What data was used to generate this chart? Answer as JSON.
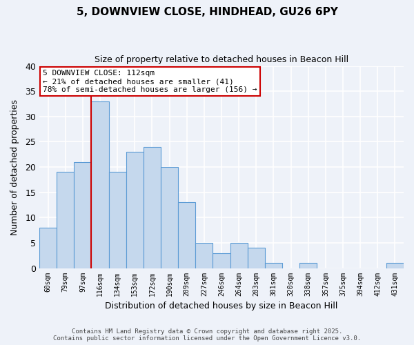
{
  "title_line1": "5, DOWNVIEW CLOSE, HINDHEAD, GU26 6PY",
  "title_line2": "Size of property relative to detached houses in Beacon Hill",
  "xlabel": "Distribution of detached houses by size in Beacon Hill",
  "ylabel": "Number of detached properties",
  "bin_labels": [
    "60sqm",
    "79sqm",
    "97sqm",
    "116sqm",
    "134sqm",
    "153sqm",
    "172sqm",
    "190sqm",
    "209sqm",
    "227sqm",
    "246sqm",
    "264sqm",
    "283sqm",
    "301sqm",
    "320sqm",
    "338sqm",
    "357sqm",
    "375sqm",
    "394sqm",
    "412sqm",
    "431sqm"
  ],
  "bar_values": [
    8,
    19,
    21,
    33,
    19,
    23,
    24,
    20,
    13,
    5,
    3,
    5,
    4,
    1,
    0,
    1,
    0,
    0,
    0,
    0,
    1
  ],
  "bar_color": "#c5d8ed",
  "bar_edge_color": "#5b9bd5",
  "vline_color": "#cc0000",
  "annotation_title": "5 DOWNVIEW CLOSE: 112sqm",
  "annotation_line2": "← 21% of detached houses are smaller (41)",
  "annotation_line3": "78% of semi-detached houses are larger (156) →",
  "annotation_box_color": "#ffffff",
  "annotation_box_edge_color": "#cc0000",
  "ylim": [
    0,
    40
  ],
  "yticks": [
    0,
    5,
    10,
    15,
    20,
    25,
    30,
    35,
    40
  ],
  "footer_line1": "Contains HM Land Registry data © Crown copyright and database right 2025.",
  "footer_line2": "Contains public sector information licensed under the Open Government Licence v3.0.",
  "bg_color": "#eef2f9",
  "grid_color": "#ffffff"
}
